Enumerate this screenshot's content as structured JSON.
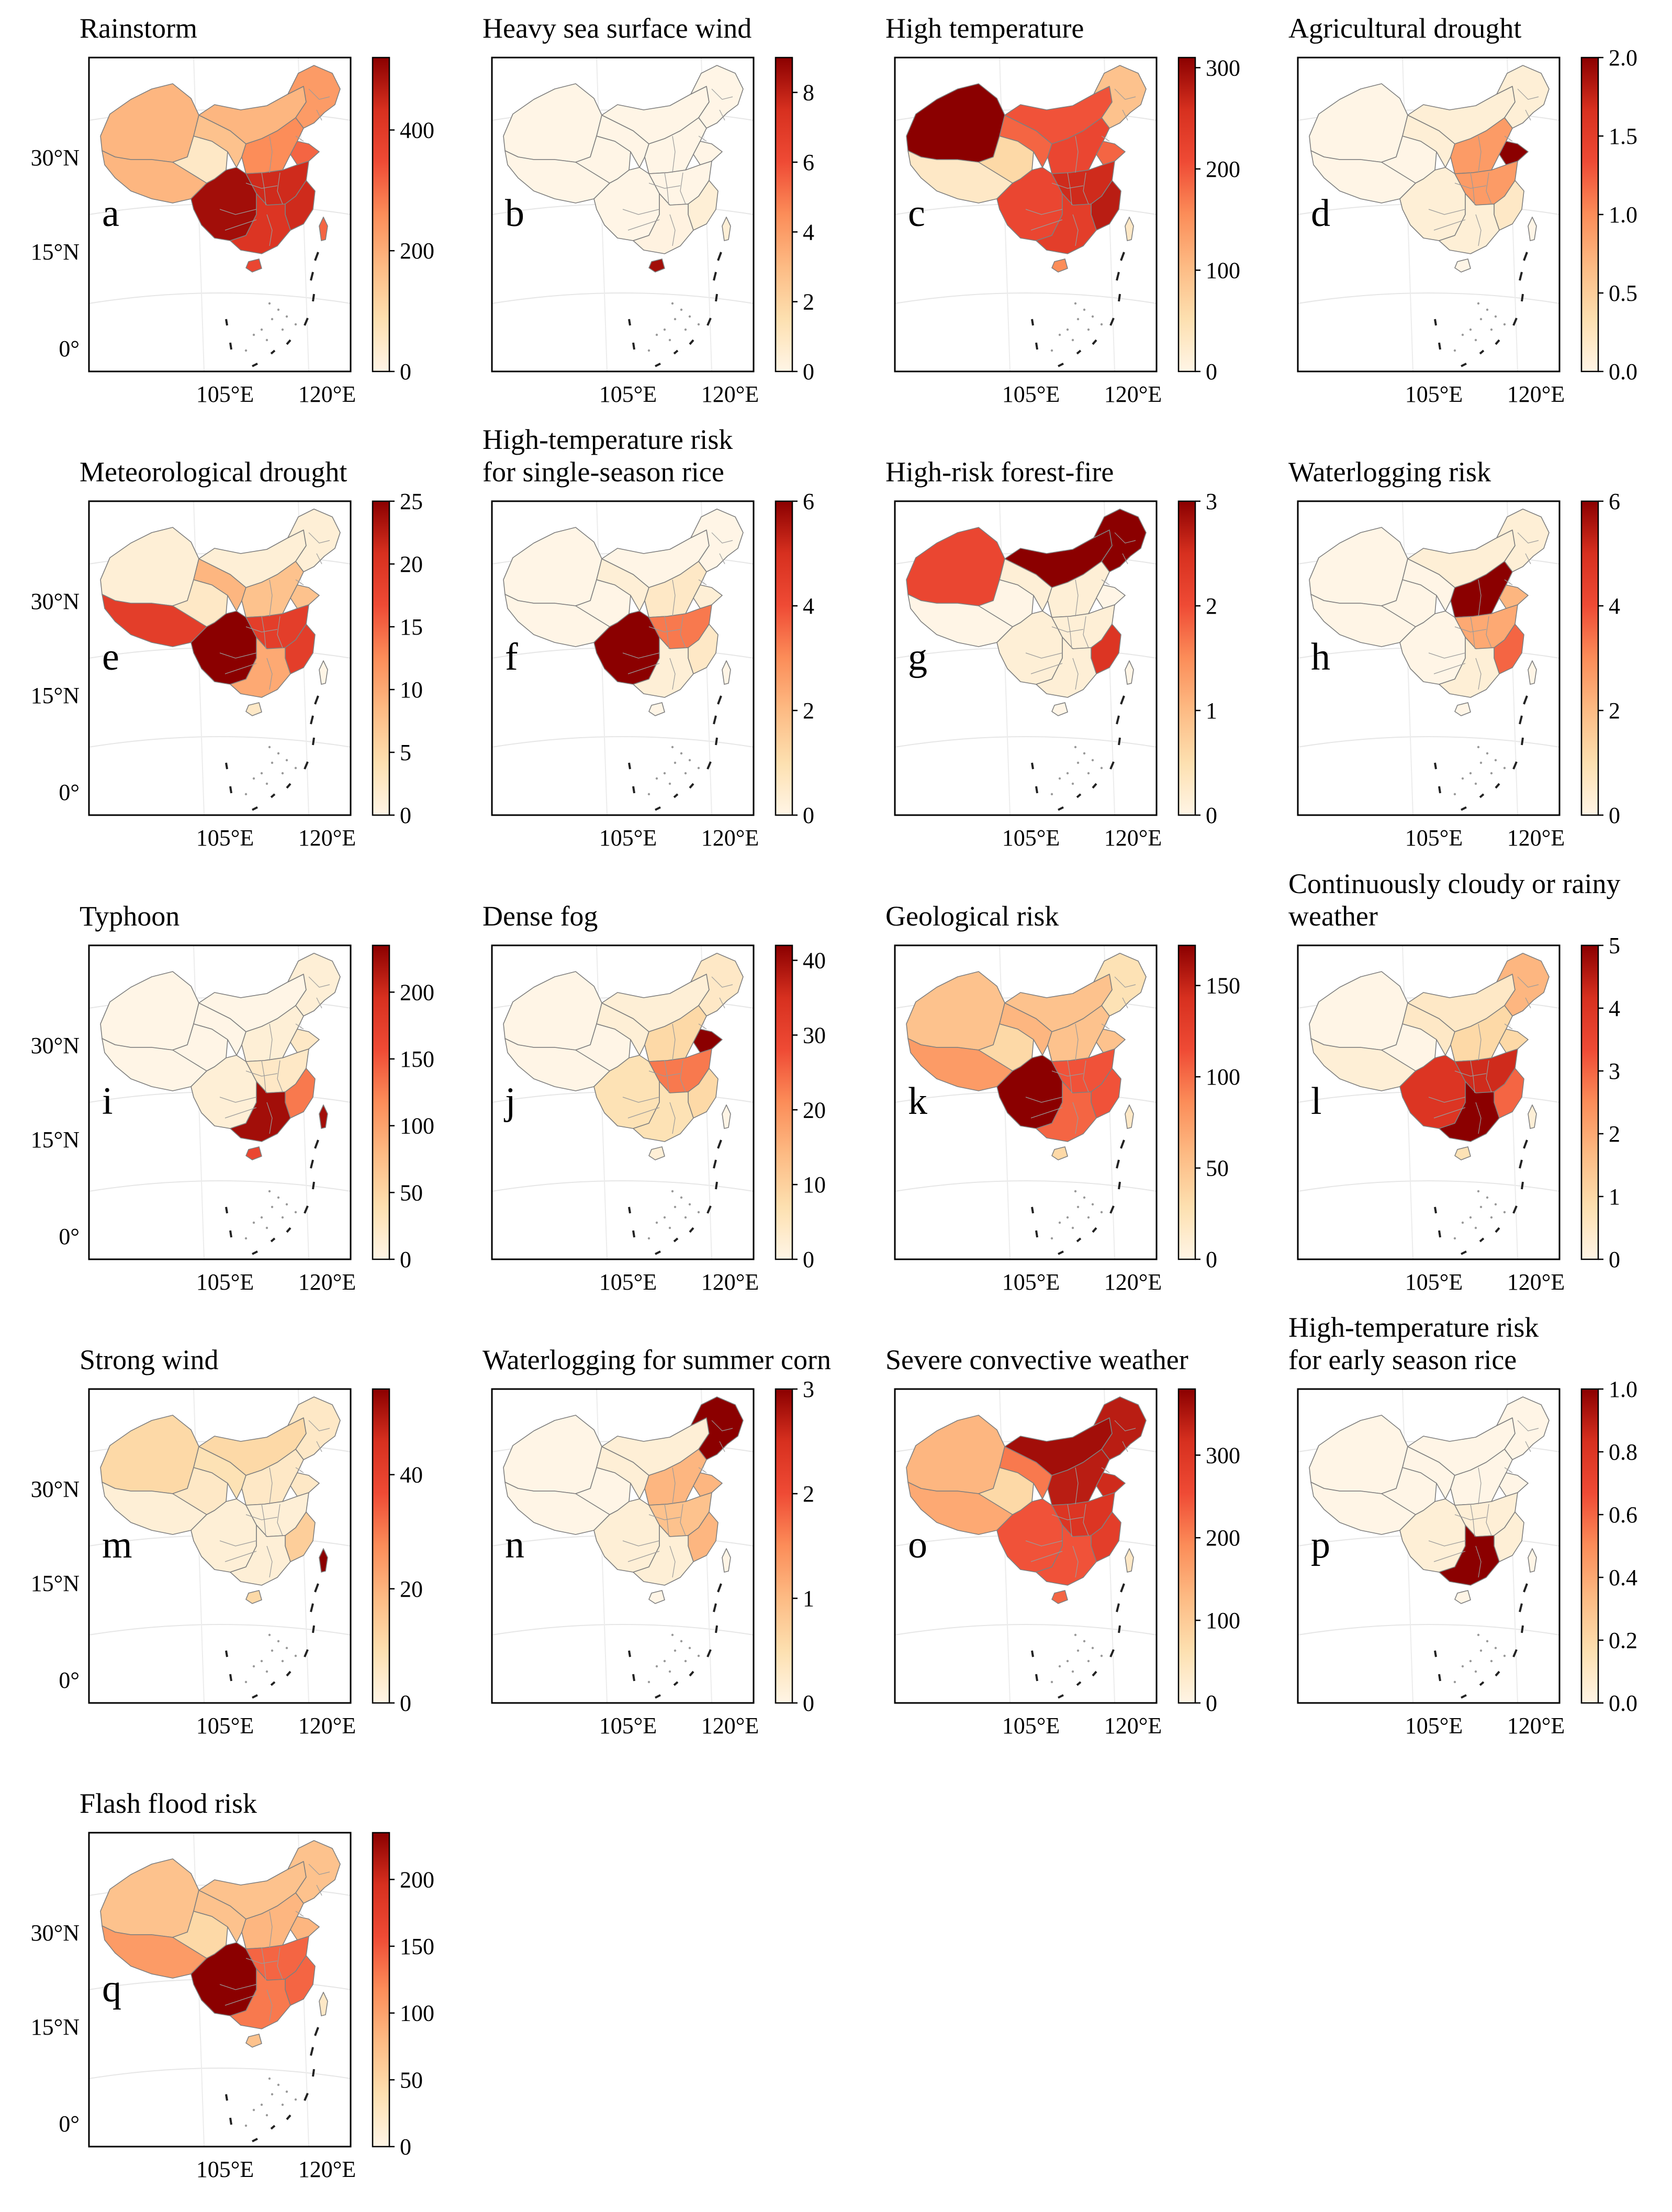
{
  "figure": {
    "longitude_labels": [
      "105°E",
      "120°E"
    ],
    "latitude_labels": [
      "30°N",
      "15°N",
      "0°"
    ],
    "colormap": [
      "#fff5e6",
      "#fde0b0",
      "#fdbb84",
      "#fc8d59",
      "#ef4b35",
      "#d7301f",
      "#8b0000"
    ]
  },
  "panels": [
    {
      "letter": "a",
      "title": [
        "Rainstorm"
      ],
      "ticks": [
        0,
        200,
        400
      ],
      "max": 520,
      "regions": {
        "xinjiang": 0.35,
        "tibet": 0.35,
        "qinghai": 0.1,
        "gansu": 0.3,
        "inner_mongolia": 0.35,
        "northeast": 0.45,
        "north_china": 0.5,
        "central_east": 0.85,
        "southwest": 0.95,
        "south": 0.8,
        "southeast": 0.85,
        "taiwan": 0.6,
        "hainan": 0.7,
        "shandong": 0.6
      }
    },
    {
      "letter": "b",
      "title": [
        "Heavy sea surface wind"
      ],
      "ticks": [
        0,
        2,
        4,
        6,
        8
      ],
      "max": 9,
      "regions": {
        "xinjiang": 0,
        "tibet": 0,
        "qinghai": 0,
        "gansu": 0,
        "inner_mongolia": 0,
        "northeast": 0,
        "north_china": 0,
        "central_east": 0,
        "southwest": 0,
        "south": 0.02,
        "southeast": 0.05,
        "taiwan": 0.05,
        "hainan": 0.95,
        "shandong": 0
      }
    },
    {
      "letter": "c",
      "title": [
        "High temperature"
      ],
      "ticks": [
        0,
        100,
        200,
        300
      ],
      "max": 310,
      "regions": {
        "xinjiang": 1.0,
        "tibet": 0.1,
        "qinghai": 0.2,
        "gansu": 0.6,
        "inner_mongolia": 0.65,
        "northeast": 0.3,
        "north_china": 0.7,
        "central_east": 0.85,
        "southwest": 0.7,
        "south": 0.75,
        "southeast": 0.9,
        "taiwan": 0.1,
        "hainan": 0.5,
        "shandong": 0.6
      }
    },
    {
      "letter": "d",
      "title": [
        "Agricultural drought"
      ],
      "ticks": [
        "0.0",
        "0.5",
        "1.0",
        "1.5",
        "2.0"
      ],
      "max": 2.0,
      "regions": {
        "xinjiang": 0,
        "tibet": 0,
        "qinghai": 0,
        "gansu": 0.05,
        "inner_mongolia": 0.05,
        "northeast": 0.05,
        "north_china": 0.45,
        "central_east": 0.45,
        "southwest": 0.05,
        "south": 0.05,
        "southeast": 0.1,
        "taiwan": 0,
        "hainan": 0,
        "shandong": 1.0
      }
    },
    {
      "letter": "e",
      "title": [
        "Meteorological drought"
      ],
      "ticks": [
        0,
        5,
        10,
        15,
        20,
        25
      ],
      "max": 25,
      "regions": {
        "xinjiang": 0.05,
        "tibet": 0.75,
        "qinghai": 0.1,
        "gansu": 0.35,
        "inner_mongolia": 0.05,
        "northeast": 0.05,
        "north_china": 0.3,
        "central_east": 0.75,
        "southwest": 1.0,
        "south": 0.4,
        "southeast": 0.75,
        "taiwan": 0,
        "hainan": 0.1,
        "shandong": 0.3
      }
    },
    {
      "letter": "f",
      "title": [
        "High-temperature risk",
        "for single-season rice"
      ],
      "ticks": [
        0,
        2,
        4,
        6
      ],
      "max": 6,
      "regions": {
        "xinjiang": 0,
        "tibet": 0,
        "qinghai": 0,
        "gansu": 0.05,
        "inner_mongolia": 0,
        "northeast": 0,
        "north_china": 0.1,
        "central_east": 0.55,
        "southwest": 1.0,
        "south": 0.05,
        "southeast": 0.1,
        "taiwan": 0,
        "hainan": 0,
        "shandong": 0.05
      }
    },
    {
      "letter": "g",
      "title": [
        "High-risk forest-fire"
      ],
      "ticks": [
        0,
        1,
        2,
        3
      ],
      "max": 3,
      "regions": {
        "xinjiang": 0.7,
        "tibet": 0,
        "qinghai": 0,
        "gansu": 0.05,
        "inner_mongolia": 1.0,
        "northeast": 1.0,
        "north_china": 0.05,
        "central_east": 0.05,
        "southwest": 0.05,
        "south": 0.05,
        "southeast": 0.8,
        "taiwan": 0,
        "hainan": 0,
        "shandong": 0
      }
    },
    {
      "letter": "h",
      "title": [
        "Waterlogging risk"
      ],
      "ticks": [
        0,
        2,
        4,
        6
      ],
      "max": 6,
      "regions": {
        "xinjiang": 0,
        "tibet": 0,
        "qinghai": 0,
        "gansu": 0,
        "inner_mongolia": 0.05,
        "northeast": 0.05,
        "north_china": 1.0,
        "central_east": 0.4,
        "southwest": 0,
        "south": 0.05,
        "southeast": 0.6,
        "taiwan": 0,
        "hainan": 0,
        "shandong": 0.35
      }
    },
    {
      "letter": "i",
      "title": [
        "Typhoon"
      ],
      "ticks": [
        0,
        50,
        100,
        150,
        200
      ],
      "max": 235,
      "regions": {
        "xinjiang": 0,
        "tibet": 0,
        "qinghai": 0,
        "gansu": 0,
        "inner_mongolia": 0,
        "northeast": 0.05,
        "north_china": 0.05,
        "central_east": 0.1,
        "southwest": 0.05,
        "south": 0.95,
        "southeast": 0.55,
        "taiwan": 0.95,
        "hainan": 0.7,
        "shandong": 0.1
      }
    },
    {
      "letter": "j",
      "title": [
        "Dense fog"
      ],
      "ticks": [
        0,
        10,
        20,
        30,
        40
      ],
      "max": 42,
      "regions": {
        "xinjiang": 0,
        "tibet": 0,
        "qinghai": 0,
        "gansu": 0.05,
        "inner_mongolia": 0.05,
        "northeast": 0.1,
        "north_china": 0.2,
        "central_east": 0.55,
        "southwest": 0.15,
        "south": 0.15,
        "southeast": 0.2,
        "taiwan": 0,
        "hainan": 0.05,
        "shandong": 1.0
      }
    },
    {
      "letter": "k",
      "title": [
        "Geological risk"
      ],
      "ticks": [
        0,
        50,
        100,
        150
      ],
      "max": 172,
      "regions": {
        "xinjiang": 0.3,
        "tibet": 0.45,
        "qinghai": 0.2,
        "gansu": 0.35,
        "inner_mongolia": 0.3,
        "northeast": 0.15,
        "north_china": 0.3,
        "central_east": 0.65,
        "southwest": 1.0,
        "south": 0.6,
        "southeast": 0.65,
        "taiwan": 0.1,
        "hainan": 0.2,
        "shandong": 0.3
      }
    },
    {
      "letter": "l",
      "title": [
        "Continuously cloudy or rainy",
        " weather"
      ],
      "ticks": [
        0,
        1,
        2,
        3,
        4,
        5
      ],
      "max": 5,
      "regions": {
        "xinjiang": 0,
        "tibet": 0.05,
        "qinghai": 0,
        "gansu": 0.1,
        "inner_mongolia": 0.1,
        "northeast": 0.35,
        "north_china": 0.2,
        "central_east": 0.85,
        "southwest": 0.8,
        "south": 1.0,
        "southeast": 0.6,
        "taiwan": 0.05,
        "hainan": 0.15,
        "shandong": 0.2
      }
    },
    {
      "letter": "m",
      "title": [
        "Strong wind"
      ],
      "ticks": [
        0,
        20,
        40
      ],
      "max": 55,
      "regions": {
        "xinjiang": 0.2,
        "tibet": 0.05,
        "qinghai": 0.1,
        "gansu": 0.15,
        "inner_mongolia": 0.2,
        "northeast": 0.1,
        "north_china": 0.1,
        "central_east": 0.05,
        "southwest": 0.05,
        "south": 0.05,
        "southeast": 0.25,
        "taiwan": 1.0,
        "hainan": 0.2,
        "shandong": 0.1
      }
    },
    {
      "letter": "n",
      "title": [
        "Waterlogging for summer corn"
      ],
      "ticks": [
        0,
        1,
        2,
        3
      ],
      "max": 3,
      "regions": {
        "xinjiang": 0,
        "tibet": 0,
        "qinghai": 0,
        "gansu": 0.05,
        "inner_mongolia": 0.05,
        "northeast": 1.0,
        "north_china": 0.35,
        "central_east": 0.3,
        "southwest": 0.05,
        "south": 0.05,
        "southeast": 0.35,
        "taiwan": 0,
        "hainan": 0,
        "shandong": 0.35
      }
    },
    {
      "letter": "o",
      "title": [
        "Severe convective weather"
      ],
      "ticks": [
        0,
        100,
        200,
        300
      ],
      "max": 380,
      "regions": {
        "xinjiang": 0.35,
        "tibet": 0.4,
        "qinghai": 0.2,
        "gansu": 0.55,
        "inner_mongolia": 0.95,
        "northeast": 0.9,
        "north_china": 0.9,
        "central_east": 0.8,
        "southwest": 0.65,
        "south": 0.65,
        "southeast": 0.75,
        "taiwan": 0.1,
        "hainan": 0.6,
        "shandong": 0.85
      }
    },
    {
      "letter": "p",
      "title": [
        "High-temperature risk",
        "for early season rice"
      ],
      "ticks": [
        "0.0",
        "0.2",
        "0.4",
        "0.6",
        "0.8",
        "1.0"
      ],
      "max": 1.0,
      "regions": {
        "xinjiang": 0,
        "tibet": 0,
        "qinghai": 0,
        "gansu": 0,
        "inner_mongolia": 0,
        "northeast": 0,
        "north_china": 0,
        "central_east": 0.05,
        "southwest": 0.05,
        "south": 1.0,
        "southeast": 0.05,
        "taiwan": 0,
        "hainan": 0,
        "shandong": 0
      }
    },
    {
      "letter": "q",
      "title": [
        "Flash flood risk"
      ],
      "ticks": [
        0,
        50,
        100,
        150,
        200
      ],
      "max": 235,
      "regions": {
        "xinjiang": 0.3,
        "tibet": 0.45,
        "qinghai": 0.2,
        "gansu": 0.3,
        "inner_mongolia": 0.3,
        "northeast": 0.3,
        "north_china": 0.35,
        "central_east": 0.6,
        "southwest": 1.0,
        "south": 0.55,
        "southeast": 0.6,
        "taiwan": 0.1,
        "hainan": 0.3,
        "shandong": 0.35
      }
    }
  ]
}
